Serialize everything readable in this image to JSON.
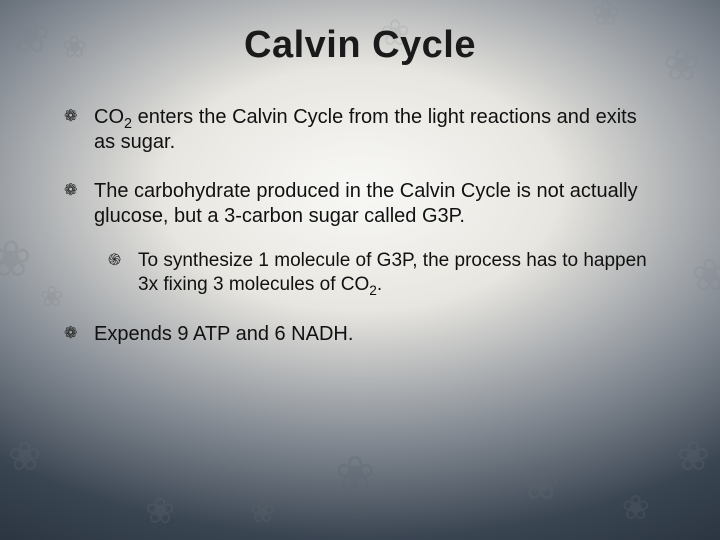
{
  "title": "Calvin Cycle",
  "bullets": {
    "b1": {
      "pre": "CO",
      "sub": "2",
      "post": " enters the Calvin Cycle from the light reactions and exits as sugar."
    },
    "b2": {
      "text": "The carbohydrate produced in the Calvin Cycle is not actually glucose, but a 3-carbon sugar called G3P.",
      "sub1": {
        "pre": "To synthesize 1 molecule of G3P, the process  has to happen 3x fixing 3 molecules of CO",
        "sub": "2",
        "post": "."
      }
    },
    "b3": {
      "text": "Expends 9 ATP and 6 NADH."
    }
  },
  "style": {
    "title_fontsize": 38,
    "body_fontsize": 20,
    "sub_fontsize": 19,
    "title_color": "#1a1a1a",
    "text_color": "#111111",
    "bg_gradient": [
      "#f8f8f6",
      "#e8e6e0",
      "#8a9098",
      "#3a4552",
      "#1a2430"
    ],
    "flower_color_light": "#7a8088",
    "flower_color_dark": "#5d6670"
  }
}
